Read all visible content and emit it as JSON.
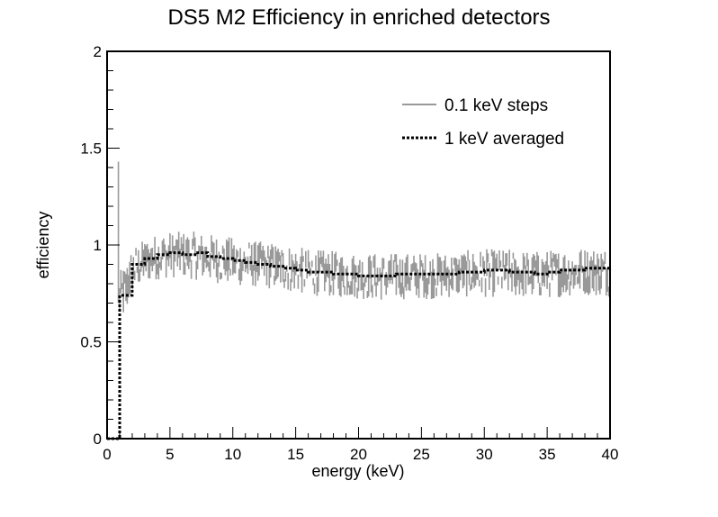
{
  "chart_data": {
    "type": "line",
    "title": "DS5 M2 Efficiency in enriched detectors",
    "xlabel": "energy (keV)",
    "ylabel": "efficiency",
    "xlim": [
      0,
      40
    ],
    "ylim": [
      0,
      2
    ],
    "x_ticks": [
      "0",
      "5",
      "10",
      "15",
      "20",
      "25",
      "30",
      "35",
      "40"
    ],
    "y_ticks": [
      "0",
      "0.5",
      "1",
      "1.5",
      "2"
    ],
    "grid": false,
    "legend_position": "top-right",
    "series": [
      {
        "name": "0.1 keV steps",
        "style": "solid",
        "color": "#999999",
        "note_shape": "noisy band",
        "spike": {
          "x": 0.9,
          "y": 1.43
        },
        "x": [
          1.0,
          1.5,
          2,
          3,
          4,
          5,
          6,
          7,
          8,
          10,
          12,
          14,
          16,
          18,
          20,
          22,
          24,
          26,
          28,
          30,
          32,
          34,
          36,
          38,
          40
        ],
        "y_low": [
          0.62,
          0.65,
          0.78,
          0.83,
          0.85,
          0.86,
          0.86,
          0.85,
          0.84,
          0.82,
          0.81,
          0.79,
          0.77,
          0.76,
          0.75,
          0.74,
          0.75,
          0.75,
          0.76,
          0.76,
          0.76,
          0.75,
          0.76,
          0.77,
          0.76
        ],
        "y_high": [
          0.86,
          0.92,
          0.99,
          1.03,
          1.06,
          1.07,
          1.07,
          1.07,
          1.06,
          1.04,
          1.02,
          1.01,
          0.98,
          0.97,
          0.96,
          0.96,
          0.96,
          0.96,
          0.97,
          0.98,
          0.98,
          0.97,
          0.98,
          0.99,
          0.99
        ]
      },
      {
        "name": "1 keV averaged",
        "style": "dotted",
        "color": "#000000",
        "x": [
          0,
          1,
          1,
          2,
          2,
          3,
          4,
          5,
          6,
          7,
          8,
          9,
          10,
          11,
          12,
          13,
          14,
          15,
          16,
          17,
          18,
          19,
          20,
          21,
          22,
          23,
          24,
          25,
          26,
          27,
          28,
          29,
          30,
          31,
          32,
          33,
          34,
          35,
          36,
          37,
          38,
          39,
          40
        ],
        "y": [
          0.0,
          0.0,
          0.74,
          0.76,
          0.9,
          0.93,
          0.95,
          0.96,
          0.95,
          0.96,
          0.94,
          0.93,
          0.92,
          0.91,
          0.9,
          0.89,
          0.88,
          0.87,
          0.86,
          0.86,
          0.85,
          0.85,
          0.84,
          0.84,
          0.84,
          0.85,
          0.85,
          0.85,
          0.85,
          0.85,
          0.86,
          0.86,
          0.87,
          0.87,
          0.86,
          0.86,
          0.85,
          0.86,
          0.87,
          0.87,
          0.88,
          0.88,
          0.87
        ]
      }
    ]
  }
}
